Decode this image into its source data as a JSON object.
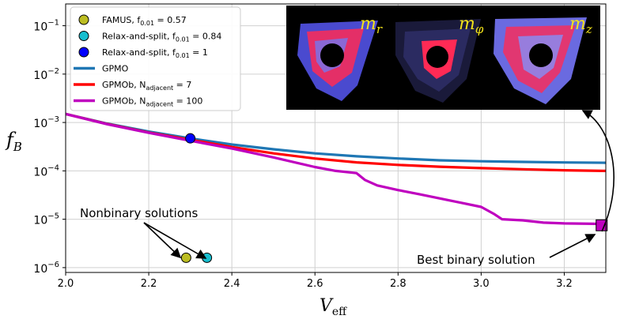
{
  "chart_data": {
    "type": "line",
    "xlabel": "V",
    "xlabel_sub": "eff",
    "ylabel": "f",
    "ylabel_sub": "B",
    "xlim": [
      2.0,
      3.3
    ],
    "ylim_log10": [
      -6.1,
      -0.55
    ],
    "y_scale": "log",
    "grid": true,
    "legend_position": "top-left",
    "x_ticks": [
      2.0,
      2.2,
      2.4,
      2.6,
      2.8,
      3.0,
      3.2
    ],
    "x_tick_labels": [
      "2.0",
      "2.2",
      "2.4",
      "2.6",
      "2.8",
      "3.0",
      "3.2"
    ],
    "y_tick_exponents": [
      -6,
      -5,
      -4,
      -3,
      -2,
      -1
    ],
    "y_tick_base": "10",
    "series": [
      {
        "name": "GPMO",
        "kind": "line",
        "color": "#1f77b4",
        "points": [
          [
            2.0,
            0.0015
          ],
          [
            2.1,
            0.00095
          ],
          [
            2.2,
            0.00065
          ],
          [
            2.3,
            0.00047
          ],
          [
            2.4,
            0.00035
          ],
          [
            2.5,
            0.00028
          ],
          [
            2.6,
            0.00023
          ],
          [
            2.7,
            0.0002
          ],
          [
            2.8,
            0.00018
          ],
          [
            2.9,
            0.000165
          ],
          [
            3.0,
            0.000158
          ],
          [
            3.1,
            0.000153
          ],
          [
            3.2,
            0.000149
          ],
          [
            3.3,
            0.000147
          ]
        ]
      },
      {
        "name": "GPMOb, N_adjacent = 7",
        "kind": "line",
        "color": "#ff0000",
        "points": [
          [
            2.0,
            0.0015
          ],
          [
            2.1,
            0.00093
          ],
          [
            2.2,
            0.00062
          ],
          [
            2.3,
            0.00044
          ],
          [
            2.4,
            0.00031
          ],
          [
            2.5,
            0.00023
          ],
          [
            2.6,
            0.00018
          ],
          [
            2.7,
            0.00015
          ],
          [
            2.8,
            0.000133
          ],
          [
            2.9,
            0.000122
          ],
          [
            3.0,
            0.000114
          ],
          [
            3.1,
            0.000108
          ],
          [
            3.2,
            0.000103
          ],
          [
            3.3,
            0.0001
          ]
        ]
      },
      {
        "name": "GPMOb, N_adjacent = 100",
        "kind": "line",
        "color": "#bf00bf",
        "points": [
          [
            2.0,
            0.0015
          ],
          [
            2.1,
            0.00092
          ],
          [
            2.2,
            0.00061
          ],
          [
            2.3,
            0.00042
          ],
          [
            2.4,
            0.00029
          ],
          [
            2.5,
            0.00019
          ],
          [
            2.6,
            0.00012
          ],
          [
            2.65,
            0.0001
          ],
          [
            2.7,
            9e-05
          ],
          [
            2.72,
            6.5e-05
          ],
          [
            2.75,
            5e-05
          ],
          [
            2.8,
            4e-05
          ],
          [
            2.85,
            3.3e-05
          ],
          [
            2.9,
            2.7e-05
          ],
          [
            2.95,
            2.2e-05
          ],
          [
            3.0,
            1.8e-05
          ],
          [
            3.03,
            1.3e-05
          ],
          [
            3.05,
            1e-05
          ],
          [
            3.1,
            9.5e-06
          ],
          [
            3.15,
            8.5e-06
          ],
          [
            3.2,
            8.2e-06
          ],
          [
            3.29,
            8e-06
          ]
        ]
      }
    ],
    "markers": [
      {
        "name": "FAMUS, f_0.01 = 0.57",
        "x": 2.29,
        "y": 1.6e-06,
        "color": "#bcbd22",
        "shape": "circle"
      },
      {
        "name": "Relax-and-split, f_0.01 = 0.84",
        "x": 2.34,
        "y": 1.6e-06,
        "color": "#17becf",
        "shape": "circle"
      },
      {
        "name": "Relax-and-split, f_0.01 = 1",
        "x": 2.3,
        "y": 0.00047,
        "color": "#0000ff",
        "shape": "circle"
      },
      {
        "name": "Best binary solution",
        "x": 3.29,
        "y": 7.5e-06,
        "color": "#bf00bf",
        "shape": "square"
      }
    ],
    "legend": [
      {
        "type": "marker",
        "color": "#bcbd22",
        "label": "FAMUS, f",
        "sub": "0.01",
        "suffix": " = 0.57"
      },
      {
        "type": "marker",
        "color": "#17becf",
        "label": "Relax-and-split, f",
        "sub": "0.01",
        "suffix": " = 0.84"
      },
      {
        "type": "marker",
        "color": "#0000ff",
        "label": "Relax-and-split, f",
        "sub": "0.01",
        "suffix": " = 1"
      },
      {
        "type": "line",
        "color": "#1f77b4",
        "label": "GPMO",
        "sub": "",
        "suffix": ""
      },
      {
        "type": "line",
        "color": "#ff0000",
        "label": "GPMOb, N",
        "sub": "adjacent",
        "suffix": " = 7"
      },
      {
        "type": "line",
        "color": "#bf00bf",
        "label": "GPMOb, N",
        "sub": "adjacent",
        "suffix": " = 100"
      }
    ],
    "annotations": [
      {
        "text": "Nonbinary solutions",
        "x": 2.12,
        "y": 1.6e-05
      },
      {
        "text": "Best binary solution",
        "x": 2.99,
        "y": 1.6e-06
      }
    ],
    "inset_labels": [
      {
        "text": "m",
        "sub": "r"
      },
      {
        "text": "m",
        "sub": "φ"
      },
      {
        "text": "m",
        "sub": "z"
      }
    ]
  }
}
